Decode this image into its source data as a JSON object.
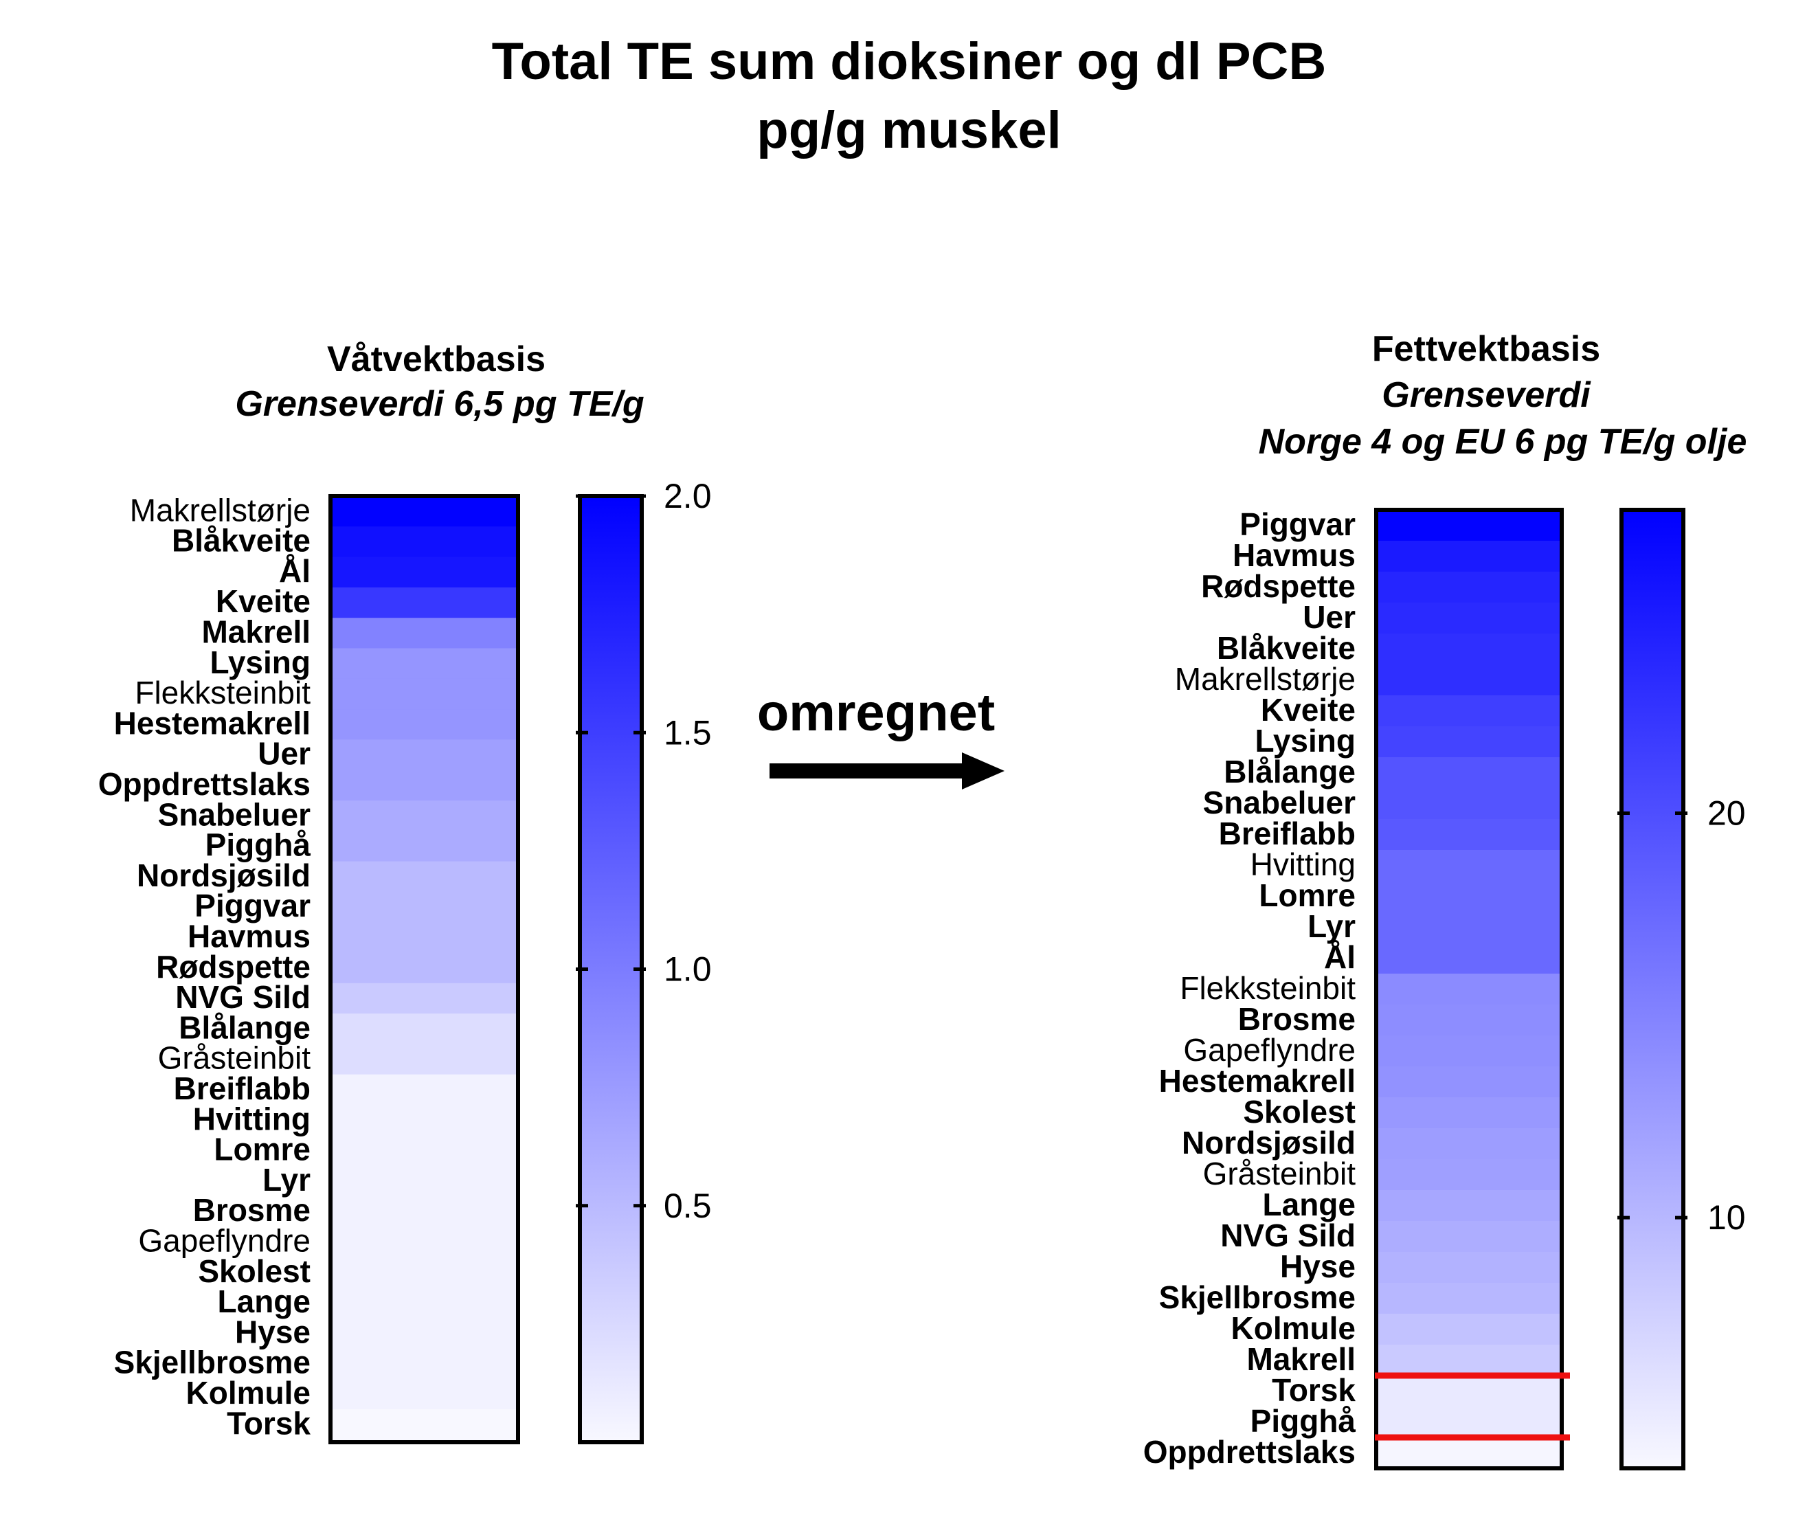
{
  "title": {
    "line1": "Total TE sum dioksiner og dl PCB",
    "line2": "pg/g muskel"
  },
  "arrow_label": "omregnet",
  "colors": {
    "max": "#0000ff",
    "min": "#f8f8ff",
    "frame": "#000000",
    "limit_line": "#ee1111"
  },
  "chart_data": [
    {
      "type": "heatmap",
      "panel_title": "Våtvektbasis",
      "panel_subtitle": [
        "Grenseverdi 6,5 pg TE/g"
      ],
      "rows": [
        {
          "label": "Makrellstørje",
          "value": 1.98,
          "bold": false
        },
        {
          "label": "Blåkveite",
          "value": 1.87,
          "bold": true
        },
        {
          "label": "Ål",
          "value": 1.82,
          "bold": true
        },
        {
          "label": "Kveite",
          "value": 1.55,
          "bold": true
        },
        {
          "label": "Makrell",
          "value": 0.95,
          "bold": true
        },
        {
          "label": "Lysing",
          "value": 0.8,
          "bold": true
        },
        {
          "label": "Flekksteinbit",
          "value": 0.8,
          "bold": false
        },
        {
          "label": "Hestemakrell",
          "value": 0.8,
          "bold": true
        },
        {
          "label": "Uer",
          "value": 0.72,
          "bold": true
        },
        {
          "label": "Oppdrettslaks",
          "value": 0.72,
          "bold": true
        },
        {
          "label": "Snabeluer",
          "value": 0.62,
          "bold": true
        },
        {
          "label": "Pigghå",
          "value": 0.62,
          "bold": true
        },
        {
          "label": "Nordsjøsild",
          "value": 0.5,
          "bold": true
        },
        {
          "label": "Piggvar",
          "value": 0.5,
          "bold": true
        },
        {
          "label": "Havmus",
          "value": 0.5,
          "bold": true
        },
        {
          "label": "Rødspette",
          "value": 0.5,
          "bold": true
        },
        {
          "label": "NVG Sild",
          "value": 0.37,
          "bold": true
        },
        {
          "label": "Blålange",
          "value": 0.22,
          "bold": true
        },
        {
          "label": "Gråsteinbit",
          "value": 0.22,
          "bold": false
        },
        {
          "label": "Breiflabb",
          "value": 0.05,
          "bold": true
        },
        {
          "label": "Hvitting",
          "value": 0.05,
          "bold": true
        },
        {
          "label": "Lomre",
          "value": 0.05,
          "bold": true
        },
        {
          "label": "Lyr",
          "value": 0.05,
          "bold": true
        },
        {
          "label": "Brosme",
          "value": 0.05,
          "bold": true
        },
        {
          "label": "Gapeflyndre",
          "value": 0.05,
          "bold": false
        },
        {
          "label": "Skolest",
          "value": 0.05,
          "bold": true
        },
        {
          "label": "Lange",
          "value": 0.05,
          "bold": true
        },
        {
          "label": "Hyse",
          "value": 0.05,
          "bold": true
        },
        {
          "label": "Skjellbrosme",
          "value": 0.05,
          "bold": true
        },
        {
          "label": "Kolmule",
          "value": 0.05,
          "bold": true
        },
        {
          "label": "Torsk",
          "value": 0.0,
          "bold": true
        }
      ],
      "scale": {
        "min": 0.0,
        "max": 2.0,
        "ticks": [
          0.5,
          1.0,
          1.5,
          2.0
        ],
        "tick_labels": [
          "0.5",
          "1.0",
          "1.5",
          "2.0"
        ]
      },
      "limit_lines": []
    },
    {
      "type": "heatmap",
      "panel_title": "Fettvektbasis",
      "panel_subtitle": [
        "Grenseverdi",
        "Norge 4 og EU 6 pg TE/g olje"
      ],
      "rows": [
        {
          "label": "Piggvar",
          "value": 27.2,
          "bold": true
        },
        {
          "label": "Havmus",
          "value": 25.0,
          "bold": true
        },
        {
          "label": "Rødspette",
          "value": 24.0,
          "bold": true
        },
        {
          "label": "Uer",
          "value": 23.5,
          "bold": true
        },
        {
          "label": "Blåkveite",
          "value": 23.0,
          "bold": true
        },
        {
          "label": "Makrellstørje",
          "value": 23.0,
          "bold": false
        },
        {
          "label": "Kveite",
          "value": 21.5,
          "bold": true
        },
        {
          "label": "Lysing",
          "value": 21.0,
          "bold": true
        },
        {
          "label": "Blålange",
          "value": 19.5,
          "bold": true
        },
        {
          "label": "Snabeluer",
          "value": 19.5,
          "bold": true
        },
        {
          "label": "Breiflabb",
          "value": 19.0,
          "bold": true
        },
        {
          "label": "Hvitting",
          "value": 17.5,
          "bold": false
        },
        {
          "label": "Lomre",
          "value": 17.5,
          "bold": true
        },
        {
          "label": "Lyr",
          "value": 17.5,
          "bold": true
        },
        {
          "label": "Ål",
          "value": 17.5,
          "bold": true
        },
        {
          "label": "Flekksteinbit",
          "value": 14.2,
          "bold": false
        },
        {
          "label": "Brosme",
          "value": 14.0,
          "bold": true
        },
        {
          "label": "Gapeflyndre",
          "value": 13.8,
          "bold": false
        },
        {
          "label": "Hestemakrell",
          "value": 13.5,
          "bold": true
        },
        {
          "label": "Skolest",
          "value": 13.0,
          "bold": true
        },
        {
          "label": "Nordsjøsild",
          "value": 12.5,
          "bold": true
        },
        {
          "label": "Gråsteinbit",
          "value": 12.3,
          "bold": false
        },
        {
          "label": "Lange",
          "value": 11.5,
          "bold": true
        },
        {
          "label": "NVG Sild",
          "value": 11.0,
          "bold": true
        },
        {
          "label": "Hyse",
          "value": 10.5,
          "bold": true
        },
        {
          "label": "Skjellbrosme",
          "value": 10.0,
          "bold": true
        },
        {
          "label": "Kolmule",
          "value": 9.0,
          "bold": true
        },
        {
          "label": "Makrell",
          "value": 8.2,
          "bold": true
        },
        {
          "label": "Torsk",
          "value": 5.2,
          "bold": true
        },
        {
          "label": "Pigghå",
          "value": 5.2,
          "bold": true
        },
        {
          "label": "Oppdrettslaks",
          "value": 4.0,
          "bold": true
        }
      ],
      "scale": {
        "min": 3.8,
        "max": 27.5,
        "ticks": [
          10,
          20
        ],
        "tick_labels": [
          "10",
          "20"
        ]
      },
      "limit_lines": [
        {
          "below_row": "Makrell"
        },
        {
          "below_row": "Pigghå"
        }
      ]
    }
  ]
}
